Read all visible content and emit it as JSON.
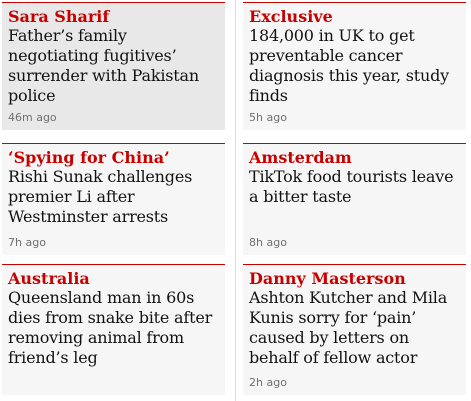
{
  "cards": [
    {
      "kicker": "Sara Sharif",
      "headline": "Father’s family negotiating fugitives’ surrender with Pakistan police",
      "time": "46m ago"
    },
    {
      "kicker": "Exclusive",
      "headline": "184,000 in UK to get preventable cancer diagnosis this year, study finds",
      "time": "5h ago"
    },
    {
      "kicker": "‘Spying for China’",
      "headline": "Rishi Sunak challenges premier Li after Westminster arrests",
      "time": "7h ago"
    },
    {
      "kicker": "Amsterdam",
      "headline": "TikTok food tourists leave a bitter taste",
      "time": "8h ago"
    },
    {
      "kicker": "Australia",
      "headline": "Queensland man in 60s dies from snake bite after removing animal from friend’s leg",
      "time": ""
    },
    {
      "kicker": "Danny Masterson",
      "headline": "Ashton Kutcher and Mila Kunis sorry for ‘pain’ caused by letters on behalf of fellow actor",
      "time": "2h ago"
    }
  ],
  "colors": {
    "kicker": "#c70000",
    "headline": "#121212",
    "card_bg": "#f6f6f6",
    "card_active_bg": "#e8e8e8"
  }
}
